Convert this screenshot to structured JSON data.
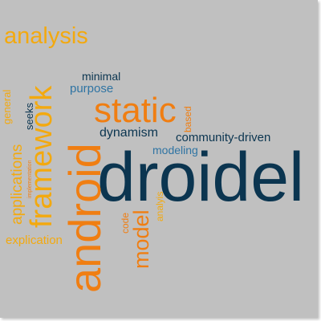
{
  "colors": {
    "background": "#c0c0c0",
    "dark_navy": "#0b3550",
    "orange": "#f07e12",
    "gold": "#f3a90f",
    "steel_blue": "#2f74a3"
  },
  "words": {
    "droidel": "droidel",
    "android": "android",
    "framework": "framework",
    "static": "static",
    "analysis": "analysis",
    "model": "model",
    "applications": "applications",
    "community_driven": "community-driven",
    "dynamism": "dynamism",
    "modeling": "modeling",
    "minimal": "minimal",
    "purpose": "purpose",
    "explication": "explication",
    "seeks": "seeks",
    "general": "general",
    "based": "based",
    "code": "code",
    "analyis": "analyis",
    "implementation": "implementation"
  }
}
